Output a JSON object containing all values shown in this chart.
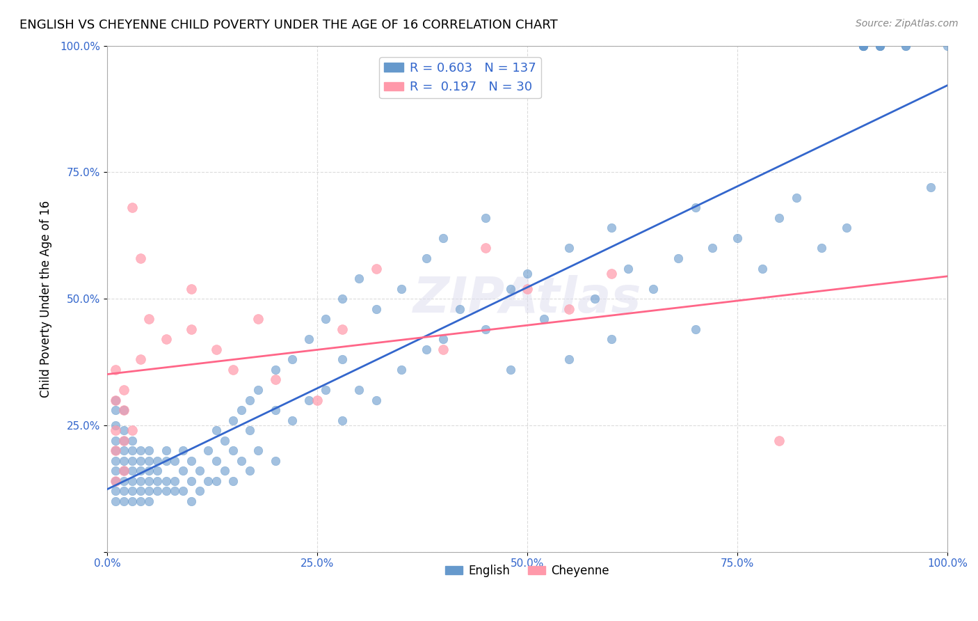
{
  "title": "ENGLISH VS CHEYENNE CHILD POVERTY UNDER THE AGE OF 16 CORRELATION CHART",
  "source": "Source: ZipAtlas.com",
  "xlabel": "",
  "ylabel": "Child Poverty Under the Age of 16",
  "english_R": 0.603,
  "english_N": 137,
  "cheyenne_R": 0.197,
  "cheyenne_N": 30,
  "english_color": "#6699CC",
  "cheyenne_color": "#FF99AA",
  "english_line_color": "#3366CC",
  "cheyenne_line_color": "#FF6688",
  "watermark": "ZIPAtlas",
  "xlim": [
    0,
    1.0
  ],
  "ylim": [
    0,
    1.0
  ],
  "xticks": [
    0.0,
    0.25,
    0.5,
    0.75,
    1.0
  ],
  "yticks": [
    0.0,
    0.25,
    0.5,
    0.75,
    1.0
  ],
  "xticklabels": [
    "0.0%",
    "25.0%",
    "50.0%",
    "75.0%",
    "100.0%"
  ],
  "yticklabels": [
    "",
    "25.0%",
    "50.0%",
    "75.0%",
    "100.0%"
  ],
  "english_x": [
    0.01,
    0.01,
    0.01,
    0.01,
    0.01,
    0.01,
    0.01,
    0.01,
    0.01,
    0.01,
    0.02,
    0.02,
    0.02,
    0.02,
    0.02,
    0.02,
    0.02,
    0.02,
    0.02,
    0.03,
    0.03,
    0.03,
    0.03,
    0.03,
    0.03,
    0.03,
    0.04,
    0.04,
    0.04,
    0.04,
    0.04,
    0.04,
    0.05,
    0.05,
    0.05,
    0.05,
    0.05,
    0.05,
    0.06,
    0.06,
    0.06,
    0.06,
    0.07,
    0.07,
    0.07,
    0.07,
    0.08,
    0.08,
    0.08,
    0.09,
    0.09,
    0.09,
    0.1,
    0.1,
    0.1,
    0.11,
    0.11,
    0.12,
    0.12,
    0.13,
    0.13,
    0.13,
    0.14,
    0.14,
    0.15,
    0.15,
    0.15,
    0.16,
    0.16,
    0.17,
    0.17,
    0.17,
    0.18,
    0.18,
    0.2,
    0.2,
    0.2,
    0.22,
    0.22,
    0.24,
    0.24,
    0.26,
    0.26,
    0.28,
    0.28,
    0.28,
    0.3,
    0.3,
    0.32,
    0.32,
    0.35,
    0.35,
    0.38,
    0.38,
    0.4,
    0.4,
    0.42,
    0.45,
    0.45,
    0.48,
    0.48,
    0.5,
    0.52,
    0.55,
    0.55,
    0.58,
    0.6,
    0.6,
    0.62,
    0.65,
    0.68,
    0.7,
    0.7,
    0.72,
    0.75,
    0.78,
    0.8,
    0.82,
    0.85,
    0.88,
    0.9,
    0.9,
    0.9,
    0.9,
    0.9,
    0.92,
    0.92,
    0.92,
    0.95,
    0.95,
    0.98,
    1.0
  ],
  "english_y": [
    0.3,
    0.28,
    0.25,
    0.22,
    0.2,
    0.18,
    0.16,
    0.14,
    0.12,
    0.1,
    0.28,
    0.24,
    0.22,
    0.2,
    0.18,
    0.16,
    0.14,
    0.12,
    0.1,
    0.22,
    0.2,
    0.18,
    0.16,
    0.14,
    0.12,
    0.1,
    0.2,
    0.18,
    0.16,
    0.14,
    0.12,
    0.1,
    0.2,
    0.18,
    0.16,
    0.14,
    0.12,
    0.1,
    0.18,
    0.16,
    0.14,
    0.12,
    0.2,
    0.18,
    0.14,
    0.12,
    0.18,
    0.14,
    0.12,
    0.2,
    0.16,
    0.12,
    0.18,
    0.14,
    0.1,
    0.16,
    0.12,
    0.2,
    0.14,
    0.24,
    0.18,
    0.14,
    0.22,
    0.16,
    0.26,
    0.2,
    0.14,
    0.28,
    0.18,
    0.3,
    0.24,
    0.16,
    0.32,
    0.2,
    0.36,
    0.28,
    0.18,
    0.38,
    0.26,
    0.42,
    0.3,
    0.46,
    0.32,
    0.5,
    0.38,
    0.26,
    0.54,
    0.32,
    0.48,
    0.3,
    0.52,
    0.36,
    0.58,
    0.4,
    0.62,
    0.42,
    0.48,
    0.66,
    0.44,
    0.52,
    0.36,
    0.55,
    0.46,
    0.6,
    0.38,
    0.5,
    0.64,
    0.42,
    0.56,
    0.52,
    0.58,
    0.68,
    0.44,
    0.6,
    0.62,
    0.56,
    0.66,
    0.7,
    0.6,
    0.64,
    1.0,
    1.0,
    1.0,
    1.0,
    1.0,
    1.0,
    1.0,
    1.0,
    1.0,
    1.0,
    0.72,
    1.0
  ],
  "cheyenne_x": [
    0.01,
    0.01,
    0.01,
    0.01,
    0.01,
    0.02,
    0.02,
    0.02,
    0.02,
    0.03,
    0.03,
    0.04,
    0.04,
    0.05,
    0.07,
    0.1,
    0.1,
    0.13,
    0.15,
    0.18,
    0.2,
    0.25,
    0.28,
    0.32,
    0.4,
    0.45,
    0.5,
    0.55,
    0.6,
    0.8
  ],
  "cheyenne_y": [
    0.36,
    0.3,
    0.24,
    0.2,
    0.14,
    0.32,
    0.28,
    0.22,
    0.16,
    0.68,
    0.24,
    0.58,
    0.38,
    0.46,
    0.42,
    0.52,
    0.44,
    0.4,
    0.36,
    0.46,
    0.34,
    0.3,
    0.44,
    0.56,
    0.4,
    0.6,
    0.52,
    0.48,
    0.55,
    0.22
  ]
}
